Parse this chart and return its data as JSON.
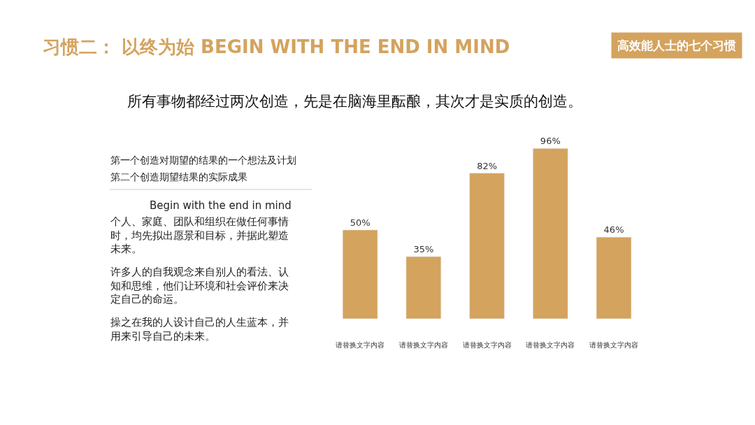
{
  "chart_data": {
    "type": "bar",
    "title": "习惯二： 以终为始 BEGIN WITH THE END IN MIND",
    "subtitle": "所有事物都经过两次创造，先是在脑海里酝酿，其次才是实质的创造。",
    "categories": [
      "请替换文字内容",
      "请替换文字内容",
      "请替换文字内容",
      "请替换文字内容",
      "请替换文字内容"
    ],
    "values": [
      50,
      35,
      82,
      96,
      46
    ],
    "color": "#d4a35e",
    "data_labels": true,
    "value_labels": [
      "50%",
      "35%",
      "82%",
      "96%",
      "46%"
    ],
    "legend": false,
    "annotations": [
      "高效能人士的七个习惯",
      "第一个创造对期望的结果的一个想法及计划",
      "第二个创造期望结果的实际成果",
      "Begin with the end in mind",
      "个人、家庭、团队和组织在做任何事情时，均先拟出愿景和目标，并据此塑造未来。",
      "许多人的自我观念来自别人的看法、认知和思维，他们让环境和社会评价来决定自己的命运。",
      "操之在我的人设计自己的人生蓝本，并用来引导自己的未来。"
    ]
  }
}
